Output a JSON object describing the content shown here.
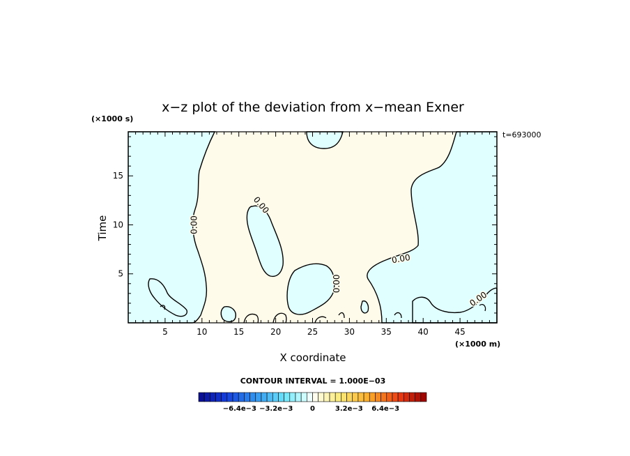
{
  "chart_data": {
    "type": "contour",
    "title": "x−z plot of the deviation from x−mean Exner",
    "xlabel": "X coordinate",
    "ylabel": "Time",
    "x_unit": "(×1000 m)",
    "y_unit": "(×1000 s)",
    "time_stamp": "t=693000",
    "xlim": [
      0,
      50
    ],
    "ylim": [
      0,
      19.5
    ],
    "x_ticks": [
      5,
      10,
      15,
      20,
      25,
      30,
      35,
      40,
      45
    ],
    "y_ticks": [
      5,
      10,
      15
    ],
    "contour_labels": [
      {
        "text": "0.00",
        "x": 9.0,
        "y": 10.0,
        "angle": -90
      },
      {
        "text": "0.00",
        "x": 18.0,
        "y": 12.0,
        "angle": 50
      },
      {
        "text": "0.00",
        "x": 28.3,
        "y": 4.0,
        "angle": -90
      },
      {
        "text": "0.00",
        "x": 37.0,
        "y": 6.5,
        "angle": -10
      },
      {
        "text": "0.00",
        "x": 47.5,
        "y": 2.4,
        "angle": -35
      }
    ],
    "contour_interval_text": "CONTOUR INTERVAL = 1.000E−03",
    "colorbar": {
      "tick_labels": [
        "−6.4e−3",
        "−3.2e−3",
        "0",
        "3.2e−3",
        "6.4e−3"
      ],
      "tick_values": [
        -0.0064,
        -0.0032,
        0,
        0.0032,
        0.0064
      ],
      "range": [
        -0.01,
        0.01
      ],
      "levels": 40
    },
    "colors": {
      "negative_fill": "#e0ffff",
      "positive_fill": "#fffbea",
      "contour_line": "#000000"
    }
  }
}
